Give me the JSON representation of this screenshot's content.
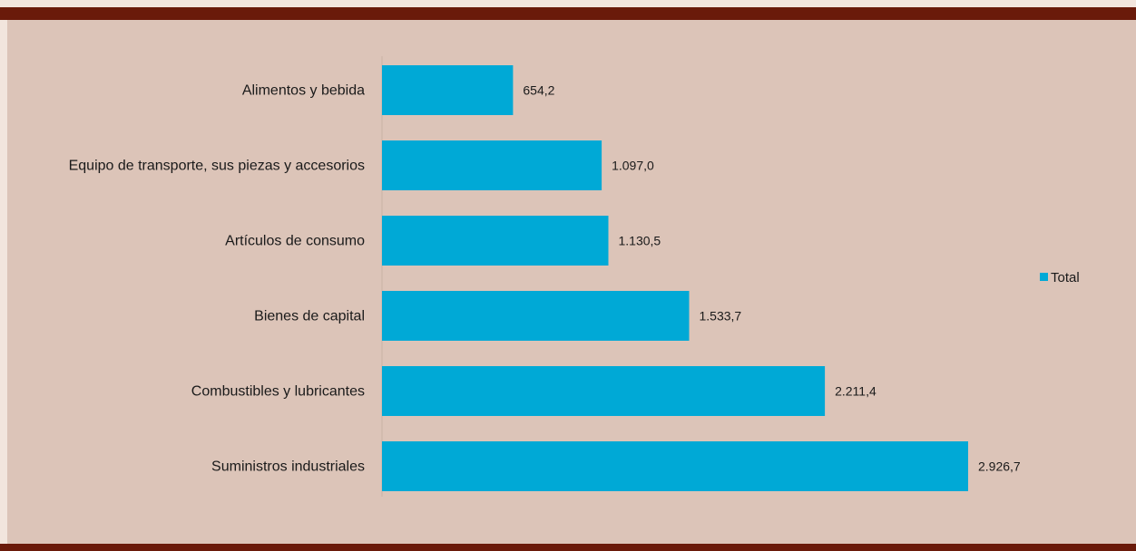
{
  "chart_data": {
    "type": "bar",
    "orientation": "horizontal",
    "categories": [
      "Alimentos y bebida",
      "Equipo de transporte, sus piezas y accesorios",
      "Artículos de consumo",
      "Bienes de capital",
      "Combustibles y lubricantes",
      "Suministros industriales"
    ],
    "series": [
      {
        "name": "Total",
        "values": [
          654.2,
          1097.0,
          1130.5,
          1533.7,
          2211.4,
          2926.7
        ],
        "labels": [
          "654,2",
          "1.097,0",
          "1.130,5",
          "1.533,7",
          "2.211,4",
          "2.926,7"
        ]
      }
    ],
    "xlim": [
      0,
      3000
    ],
    "grid": false,
    "legend_position": "right",
    "colors": {
      "bar": "#00a9d6",
      "background": "#dcc4b8",
      "accent": "#6a1a0a"
    }
  }
}
